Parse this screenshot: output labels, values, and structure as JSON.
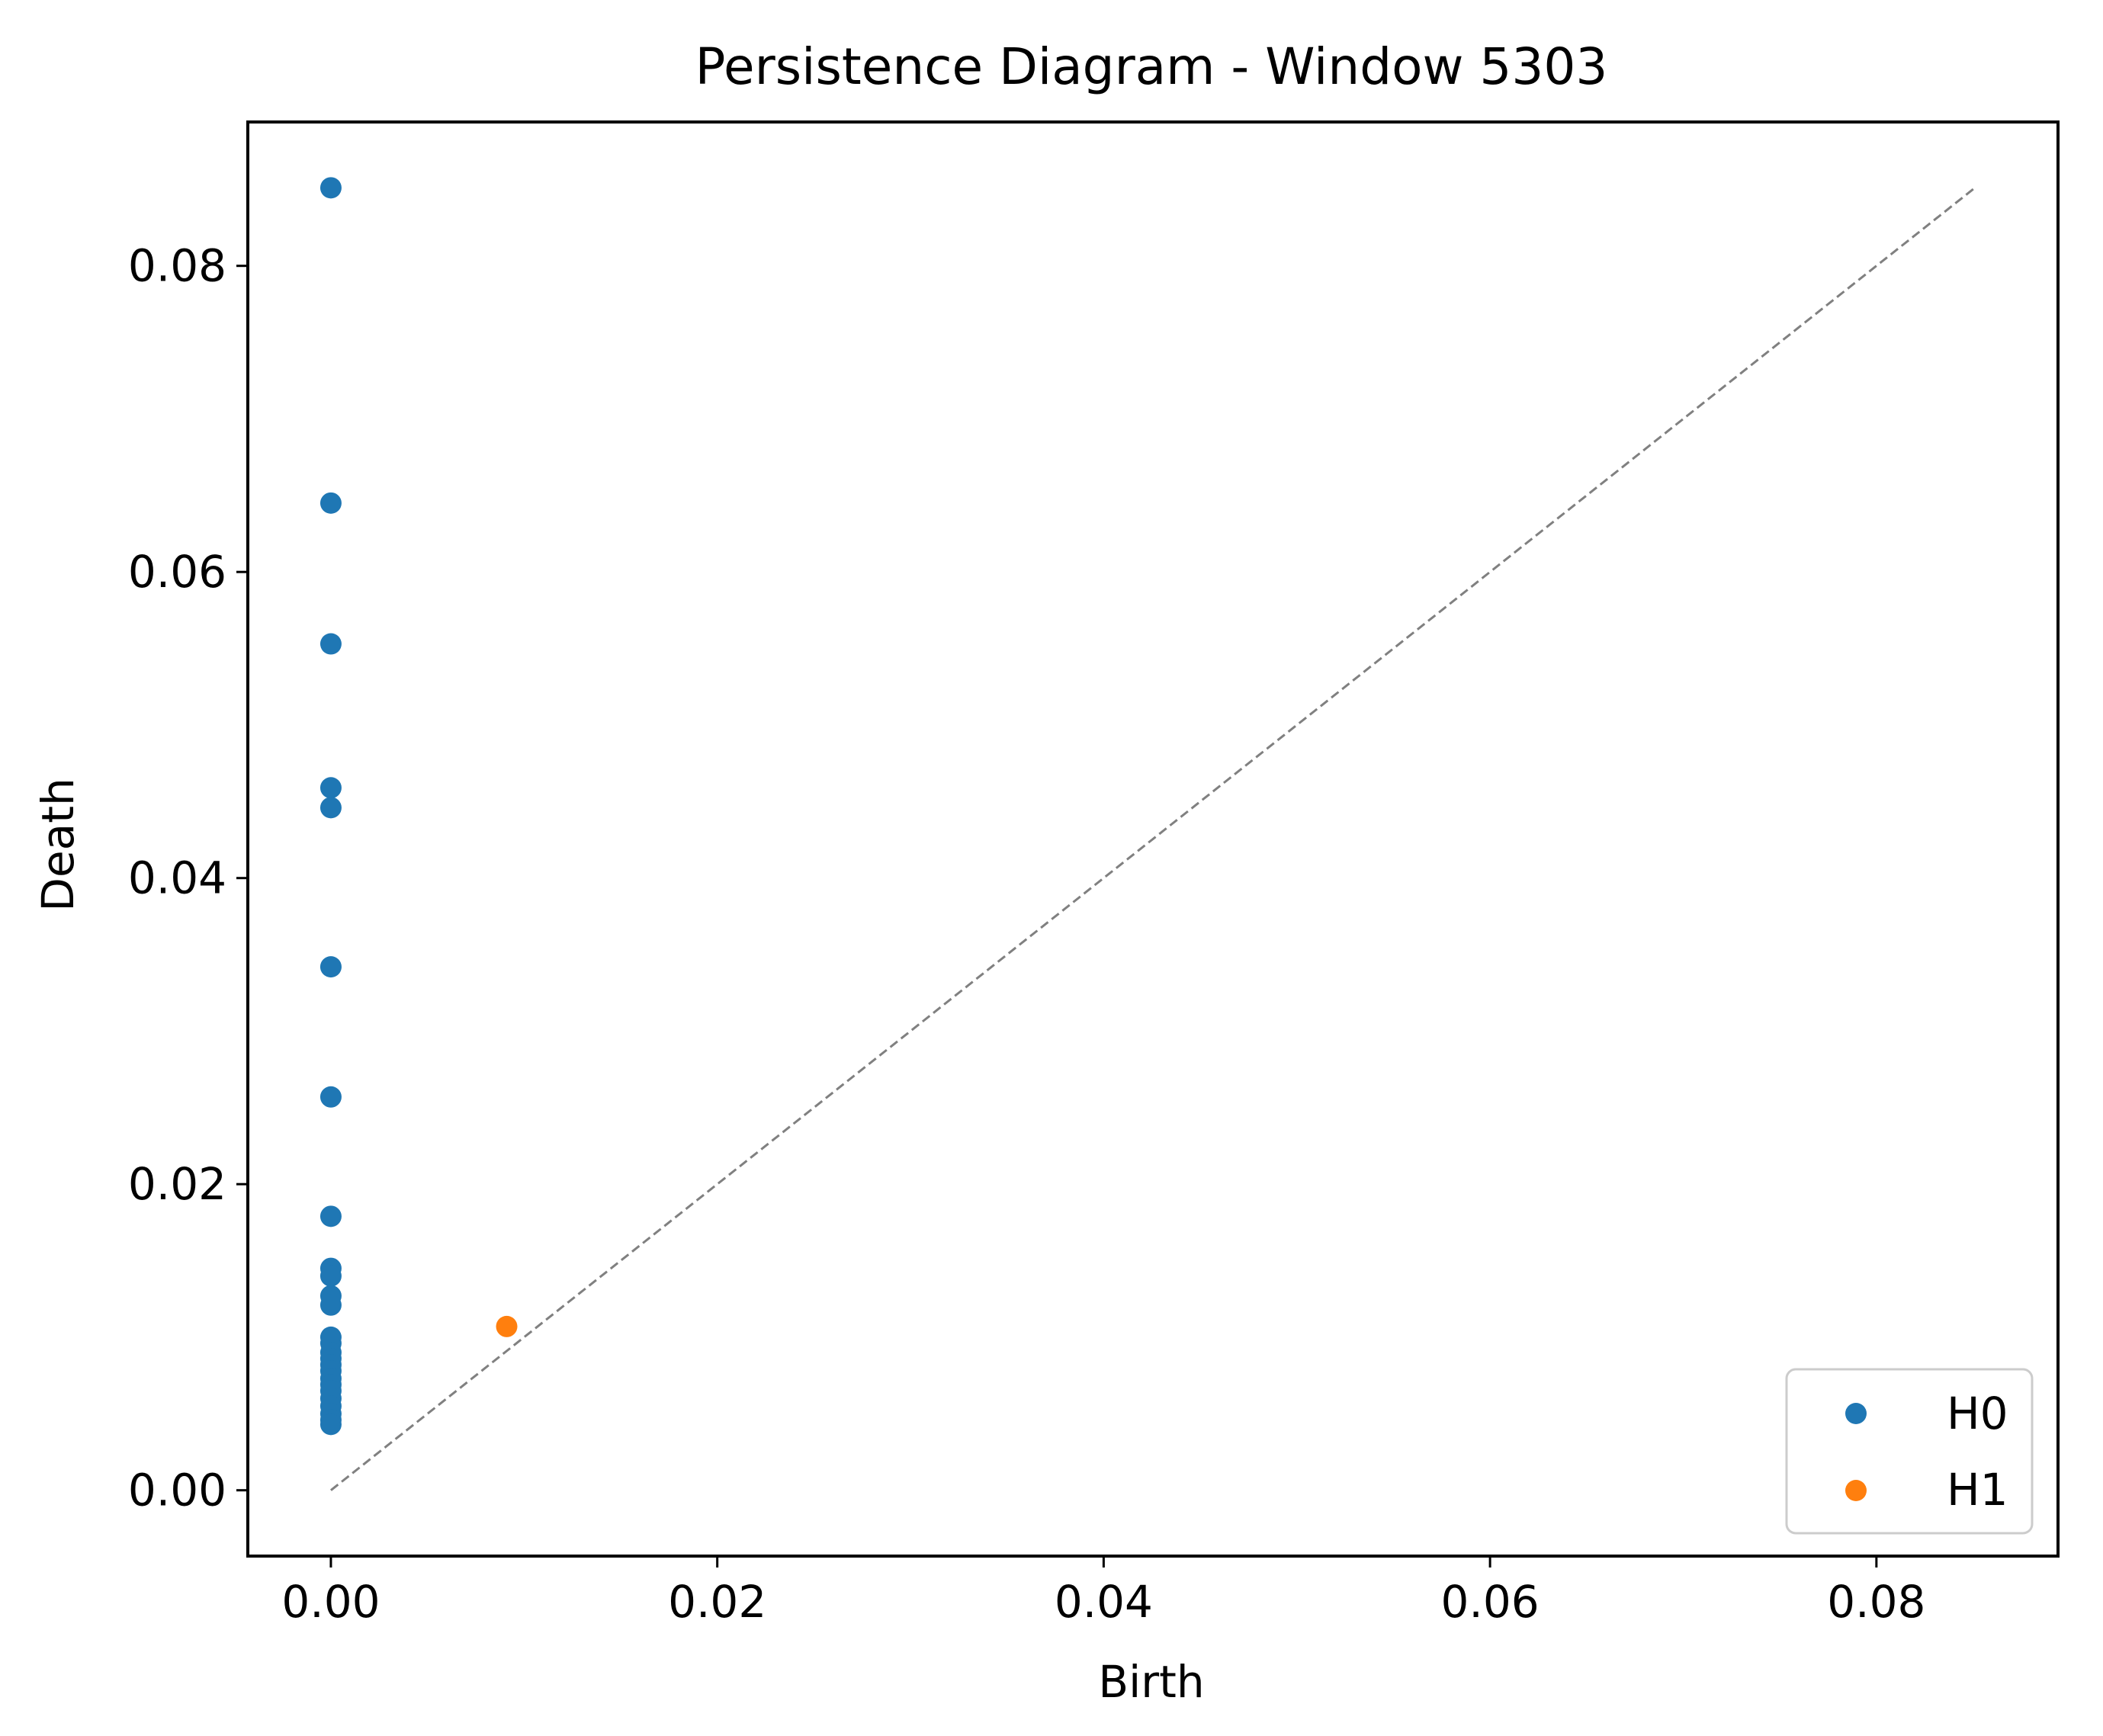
{
  "chart_data": {
    "type": "scatter",
    "title": "Persistence Diagram - Window 5303",
    "xlabel": "Birth",
    "ylabel": "Death",
    "xlim": [
      -0.0043,
      0.0894
    ],
    "ylim": [
      -0.0043,
      0.0894
    ],
    "x_ticks": [
      0.0,
      0.02,
      0.04,
      0.06,
      0.08
    ],
    "y_ticks": [
      0.0,
      0.02,
      0.04,
      0.06,
      0.08
    ],
    "x_tick_labels": [
      "0.00",
      "0.02",
      "0.04",
      "0.06",
      "0.08"
    ],
    "y_tick_labels": [
      "0.00",
      "0.02",
      "0.04",
      "0.06",
      "0.08"
    ],
    "grid": false,
    "legend_position": "lower-right",
    "diagonal": {
      "from": [
        0,
        0
      ],
      "to": [
        0.0851,
        0.0851
      ],
      "style": "dashed",
      "color": "#808080"
    },
    "series": [
      {
        "name": "H0",
        "color": "#1f77b4",
        "points": [
          [
            0,
            0.0851
          ],
          [
            0,
            0.0645
          ],
          [
            0,
            0.0553
          ],
          [
            0,
            0.0459
          ],
          [
            0,
            0.0446
          ],
          [
            0,
            0.0342
          ],
          [
            0,
            0.0257
          ],
          [
            0,
            0.0179
          ],
          [
            0,
            0.0145
          ],
          [
            0,
            0.014
          ],
          [
            0,
            0.0127
          ],
          [
            0,
            0.0121
          ],
          [
            0,
            0.01
          ],
          [
            0,
            0.0096
          ],
          [
            0,
            0.009
          ],
          [
            0,
            0.0086
          ],
          [
            0,
            0.0082
          ],
          [
            0,
            0.0078
          ],
          [
            0,
            0.0073
          ],
          [
            0,
            0.0069
          ],
          [
            0,
            0.0065
          ],
          [
            0,
            0.006
          ],
          [
            0,
            0.0055
          ],
          [
            0,
            0.005
          ],
          [
            0,
            0.0046
          ],
          [
            0,
            0.0043
          ]
        ]
      },
      {
        "name": "H1",
        "color": "#ff7f0e",
        "points": [
          [
            0.0091,
            0.0107
          ]
        ]
      }
    ]
  }
}
